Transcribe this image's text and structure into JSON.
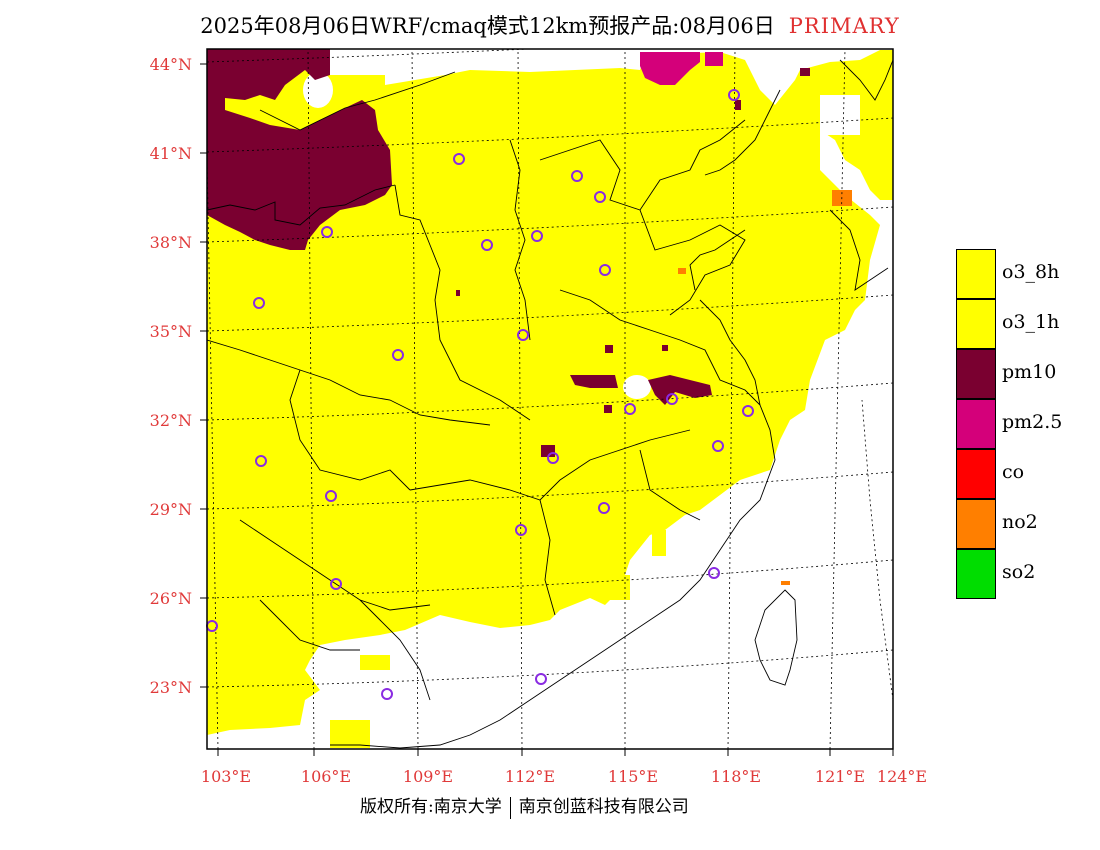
{
  "header": {
    "title": "2025年08月06日WRF/cmaq模式12km预报产品:08月06日",
    "tag": "PRIMARY"
  },
  "axes": {
    "lat_labels": [
      "44°N",
      "41°N",
      "38°N",
      "35°N",
      "32°N",
      "29°N",
      "26°N",
      "23°N"
    ],
    "lon_labels": [
      "103°E",
      "106°E",
      "109°E",
      "112°E",
      "115°E",
      "118°E",
      "121°E",
      "124°E"
    ]
  },
  "legend": {
    "items": [
      {
        "label": "o3_8h",
        "color": "#ffff00"
      },
      {
        "label": "o3_1h",
        "color": "#ffff00"
      },
      {
        "label": "pm10",
        "color": "#7a0030"
      },
      {
        "label": "pm2.5",
        "color": "#d4007a"
      },
      {
        "label": "co",
        "color": "#ff0000"
      },
      {
        "label": "no2",
        "color": "#ff7f00"
      },
      {
        "label": "so2",
        "color": "#00dd00"
      }
    ]
  },
  "map_colors": {
    "o3": "#ffff00",
    "pm10": "#7a0030",
    "pm25": "#d4007a",
    "no2": "#ff7f00",
    "station_marker": "#8a2be2"
  },
  "footer": {
    "copyright": "版权所有:南京大学",
    "company": "南京创蓝科技有限公司"
  }
}
